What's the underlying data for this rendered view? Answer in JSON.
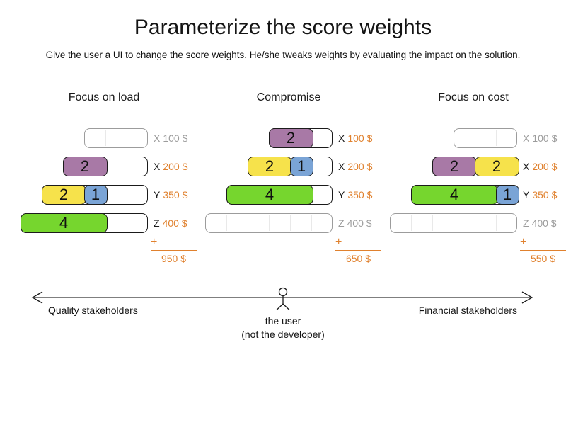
{
  "title": "Parameterize the score weights",
  "subtitle": "Give the user a UI to change the score weights. He/she tweaks weights by evaluating the impact on the solution.",
  "colors": {
    "purple": "#a879a6",
    "yellow": "#f6e24b",
    "blue": "#7aa4d6",
    "green": "#76d62e",
    "accent_orange": "#e0812e",
    "inactive_gray": "#9c9c9c",
    "text_dark": "#1a1a1a",
    "arrow_gray": "#7f7f7f"
  },
  "unit_price_rows": [
    "X 100 $",
    "X 200 $",
    "Y 350 $",
    "Z 400 $"
  ],
  "columns": [
    {
      "header": "Focus on load",
      "plus": "+",
      "total": "950 $",
      "rows": [
        {
          "letter": "X",
          "price": "100 $",
          "units": 3,
          "active": false,
          "blocks": []
        },
        {
          "letter": "X",
          "price": "200 $",
          "units": 4,
          "active": true,
          "blocks": [
            {
              "value": "2",
              "color": "purple",
              "units": 2
            }
          ]
        },
        {
          "letter": "Y",
          "price": "350 $",
          "units": 5,
          "active": true,
          "blocks": [
            {
              "value": "2",
              "color": "yellow",
              "units": 2
            },
            {
              "value": "1",
              "color": "blue",
              "units": 1
            }
          ]
        },
        {
          "letter": "Z",
          "price": "400 $",
          "units": 6,
          "active": true,
          "blocks": [
            {
              "value": "4",
              "color": "green",
              "units": 4
            }
          ]
        }
      ]
    },
    {
      "header": "Compromise",
      "plus": "+",
      "total": "650 $",
      "rows": [
        {
          "letter": "X",
          "price": "100 $",
          "units": 3,
          "active": true,
          "blocks": [
            {
              "value": "2",
              "color": "purple",
              "units": 2
            }
          ]
        },
        {
          "letter": "X",
          "price": "200 $",
          "units": 4,
          "active": true,
          "blocks": [
            {
              "value": "2",
              "color": "yellow",
              "units": 2
            },
            {
              "value": "1",
              "color": "blue",
              "units": 1
            }
          ]
        },
        {
          "letter": "Y",
          "price": "350 $",
          "units": 5,
          "active": true,
          "blocks": [
            {
              "value": "4",
              "color": "green",
              "units": 4
            }
          ]
        },
        {
          "letter": "Z",
          "price": "400 $",
          "units": 6,
          "active": false,
          "blocks": []
        }
      ]
    },
    {
      "header": "Focus on cost",
      "plus": "+",
      "total": "550 $",
      "rows": [
        {
          "letter": "X",
          "price": "100 $",
          "units": 3,
          "active": false,
          "blocks": []
        },
        {
          "letter": "X",
          "price": "200 $",
          "units": 4,
          "active": true,
          "blocks": [
            {
              "value": "2",
              "color": "purple",
              "units": 2
            },
            {
              "value": "2",
              "color": "yellow",
              "units": 2
            }
          ]
        },
        {
          "letter": "Y",
          "price": "350 $",
          "units": 5,
          "active": true,
          "blocks": [
            {
              "value": "4",
              "color": "green",
              "units": 4
            },
            {
              "value": "1",
              "color": "blue",
              "units": 1
            }
          ]
        },
        {
          "letter": "Z",
          "price": "400 $",
          "units": 6,
          "active": false,
          "blocks": []
        }
      ]
    }
  ],
  "axis": {
    "left_label": "Quality stakeholders",
    "right_label": "Financial stakeholders",
    "center_label_line1": "the user",
    "center_label_line2": "(not the developer)"
  }
}
